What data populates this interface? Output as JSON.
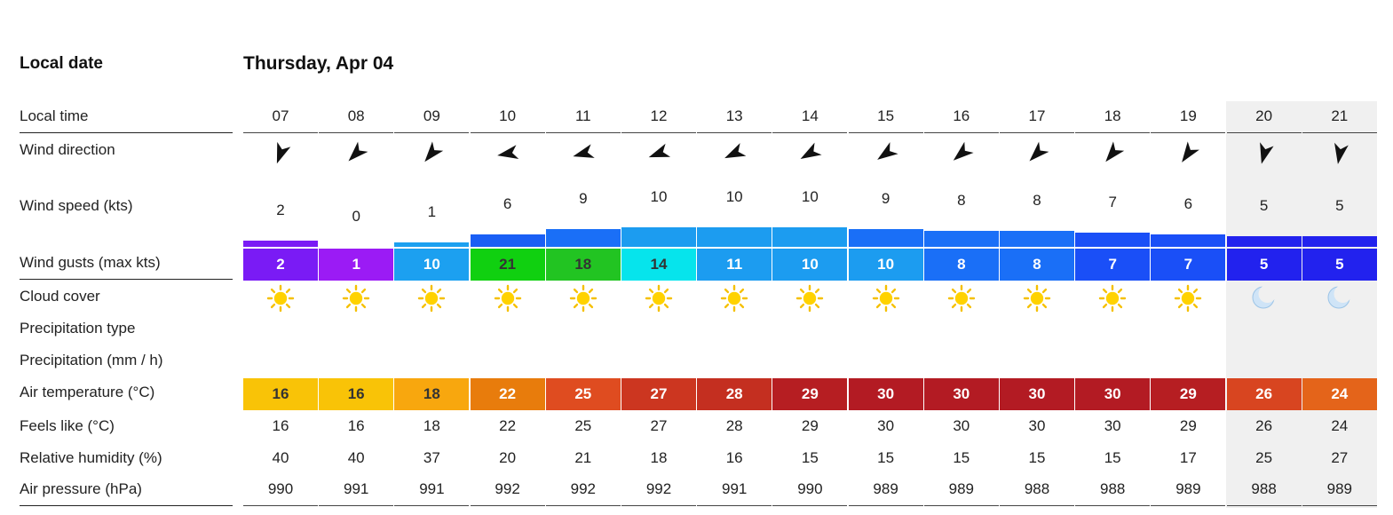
{
  "labels": {
    "local_date": "Local date",
    "day": "Thursday, Apr 04",
    "local_time": "Local time",
    "wind_direction": "Wind direction",
    "wind_speed": "Wind speed (kts)",
    "wind_gusts": "Wind gusts (max kts)",
    "cloud_cover": "Cloud cover",
    "precip_type": "Precipitation type",
    "precip_amount": "Precipitation (mm / h)",
    "air_temp": "Air temperature (°C)",
    "feels_like": "Feels like (°C)",
    "humidity": "Relative humidity (%)",
    "pressure": "Air pressure (hPa)"
  },
  "hours": [
    {
      "time": "07",
      "dir": 200,
      "speed": "2",
      "speed_color": "#7a1bf5",
      "gust": "2",
      "gust_color": "#7a1bf5",
      "cloud": "sun-icon",
      "temp": "16",
      "temp_color": "#f9c307",
      "feels": "16",
      "humidity": "40",
      "pressure": "990",
      "night": false
    },
    {
      "time": "08",
      "dir": 225,
      "speed": "0",
      "speed_color": "#9b1bf5",
      "gust": "1",
      "gust_color": "#9b1bf5",
      "cloud": "sun-icon",
      "temp": "16",
      "temp_color": "#f9c307",
      "feels": "16",
      "humidity": "40",
      "pressure": "991",
      "night": false
    },
    {
      "time": "09",
      "dir": 220,
      "speed": "1",
      "speed_color": "#1ca0f0",
      "gust": "10",
      "gust_color": "#1ca0f0",
      "cloud": "sun-icon",
      "temp": "18",
      "temp_color": "#f8a70e",
      "feels": "18",
      "humidity": "37",
      "pressure": "991",
      "night": false
    },
    {
      "time": "10",
      "dir": 260,
      "speed": "6",
      "speed_color": "#1a5ff5",
      "gust": "21",
      "gust_color": "#10d010",
      "cloud": "sun-icon",
      "temp": "22",
      "temp_color": "#e87c0c",
      "feels": "22",
      "humidity": "20",
      "pressure": "992",
      "night": false
    },
    {
      "time": "11",
      "dir": 255,
      "speed": "9",
      "speed_color": "#1a6ff7",
      "gust": "18",
      "gust_color": "#22c422",
      "cloud": "sun-icon",
      "temp": "25",
      "temp_color": "#df4c20",
      "feels": "25",
      "humidity": "21",
      "pressure": "992",
      "night": false
    },
    {
      "time": "12",
      "dir": 250,
      "speed": "10",
      "speed_color": "#1c9cf0",
      "gust": "14",
      "gust_color": "#06e4ec",
      "cloud": "sun-icon",
      "temp": "27",
      "temp_color": "#cc3620",
      "feels": "27",
      "humidity": "18",
      "pressure": "992",
      "night": false
    },
    {
      "time": "13",
      "dir": 245,
      "speed": "10",
      "speed_color": "#1c9cf0",
      "gust": "11",
      "gust_color": "#1c9cf0",
      "cloud": "sun-icon",
      "temp": "28",
      "temp_color": "#c42f20",
      "feels": "28",
      "humidity": "16",
      "pressure": "991",
      "night": false
    },
    {
      "time": "14",
      "dir": 240,
      "speed": "10",
      "speed_color": "#1c9cf0",
      "gust": "10",
      "gust_color": "#1c9cf0",
      "cloud": "sun-icon",
      "temp": "29",
      "temp_color": "#b61e22",
      "feels": "29",
      "humidity": "15",
      "pressure": "990",
      "night": false
    },
    {
      "time": "15",
      "dir": 235,
      "speed": "9",
      "speed_color": "#1a6ff7",
      "gust": "10",
      "gust_color": "#1c9cf0",
      "cloud": "sun-icon",
      "temp": "30",
      "temp_color": "#b31b23",
      "feels": "30",
      "humidity": "15",
      "pressure": "989",
      "night": false
    },
    {
      "time": "16",
      "dir": 230,
      "speed": "8",
      "speed_color": "#1a6ff7",
      "gust": "8",
      "gust_color": "#1a6ff7",
      "cloud": "sun-icon",
      "temp": "30",
      "temp_color": "#b31b23",
      "feels": "30",
      "humidity": "15",
      "pressure": "989",
      "night": false
    },
    {
      "time": "17",
      "dir": 225,
      "speed": "8",
      "speed_color": "#1a6ff7",
      "gust": "8",
      "gust_color": "#1a6ff7",
      "cloud": "sun-icon",
      "temp": "30",
      "temp_color": "#b31b23",
      "feels": "30",
      "humidity": "15",
      "pressure": "988",
      "night": false
    },
    {
      "time": "18",
      "dir": 220,
      "speed": "7",
      "speed_color": "#1a4ff7",
      "gust": "7",
      "gust_color": "#1a4ff7",
      "cloud": "sun-icon",
      "temp": "30",
      "temp_color": "#b31b23",
      "feels": "30",
      "humidity": "15",
      "pressure": "988",
      "night": false
    },
    {
      "time": "19",
      "dir": 215,
      "speed": "6",
      "speed_color": "#1a4ff7",
      "gust": "7",
      "gust_color": "#1a4ff7",
      "cloud": "sun-icon",
      "temp": "29",
      "temp_color": "#b61e22",
      "feels": "29",
      "humidity": "17",
      "pressure": "989",
      "night": false
    },
    {
      "time": "20",
      "dir": 195,
      "speed": "5",
      "speed_color": "#2222ee",
      "gust": "5",
      "gust_color": "#2222ee",
      "cloud": "moon-icon",
      "temp": "26",
      "temp_color": "#d84520",
      "feels": "26",
      "humidity": "25",
      "pressure": "988",
      "night": true
    },
    {
      "time": "21",
      "dir": 190,
      "speed": "5",
      "speed_color": "#2222ee",
      "gust": "5",
      "gust_color": "#2222ee",
      "cloud": "moon-icon",
      "temp": "24",
      "temp_color": "#e4641a",
      "feels": "24",
      "humidity": "27",
      "pressure": "989",
      "night": true
    }
  ]
}
